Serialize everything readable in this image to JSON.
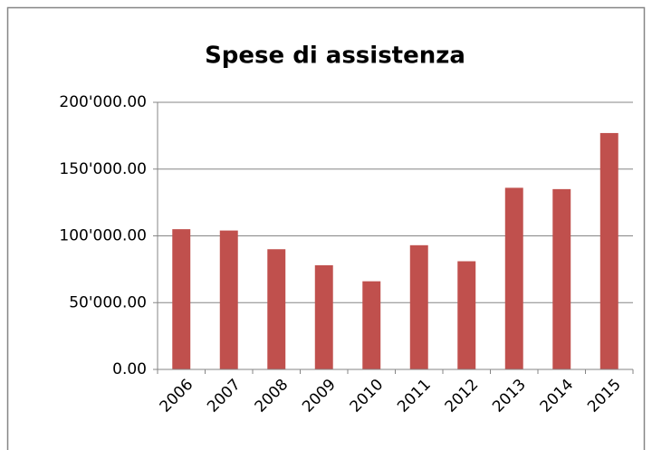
{
  "chart_data": {
    "type": "bar",
    "title": "Spese di assistenza",
    "categories": [
      "2006",
      "2007",
      "2008",
      "2009",
      "2010",
      "2011",
      "2012",
      "2013",
      "2014",
      "2015"
    ],
    "values": [
      105000,
      104000,
      90000,
      78000,
      66000,
      93000,
      81000,
      136000,
      135000,
      177000
    ],
    "color": "#c0504d",
    "ylim": [
      0,
      200000
    ],
    "yticks": [
      {
        "value": 0,
        "label": "0.00"
      },
      {
        "value": 50000,
        "label": "50'000.00"
      },
      {
        "value": 100000,
        "label": "100'000.00"
      },
      {
        "value": 150000,
        "label": "150'000.00"
      },
      {
        "value": 200000,
        "label": "200'000.00"
      }
    ],
    "grid": true
  }
}
